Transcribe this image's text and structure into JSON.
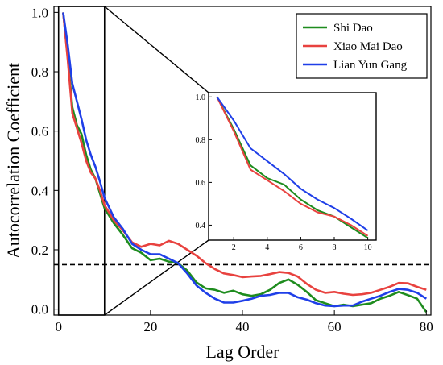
{
  "chart_data": {
    "type": "line",
    "title": "",
    "xlabel": "Lag Order",
    "ylabel": "Autocorrelation Coefficient",
    "xlim": [
      -1,
      81
    ],
    "ylim": [
      -0.02,
      1.02
    ],
    "xticks": [
      0,
      20,
      40,
      60,
      80
    ],
    "xtick_labels": [
      "0",
      "20",
      "40",
      "60",
      "80"
    ],
    "yticks": [
      0.0,
      0.2,
      0.4,
      0.6,
      0.8,
      1.0
    ],
    "ytick_labels": [
      "0.0",
      "0.2",
      "0.4",
      "0.6",
      "0.8",
      "1.0"
    ],
    "grid": false,
    "legend_position": "top-right",
    "threshold_line": {
      "value": 0.15,
      "style": "dashed",
      "color": "#000000"
    },
    "zoom_box": {
      "x": [
        0,
        10
      ],
      "y": [
        -0.02,
        1.02
      ]
    },
    "series": [
      {
        "name": "Shi Dao",
        "color": "#1e8c1e",
        "x": [
          1,
          2,
          3,
          4,
          5,
          6,
          7,
          8,
          9,
          10,
          12,
          14,
          16,
          18,
          20,
          22,
          24,
          26,
          28,
          30,
          32,
          34,
          36,
          38,
          40,
          42,
          44,
          46,
          48,
          50,
          52,
          54,
          56,
          58,
          60,
          62,
          64,
          66,
          68,
          70,
          72,
          74,
          76,
          78,
          80
        ],
        "values": [
          1.0,
          0.85,
          0.68,
          0.62,
          0.59,
          0.52,
          0.47,
          0.44,
          0.39,
          0.34,
          0.29,
          0.25,
          0.205,
          0.19,
          0.165,
          0.17,
          0.16,
          0.155,
          0.13,
          0.09,
          0.07,
          0.065,
          0.055,
          0.062,
          0.05,
          0.045,
          0.05,
          0.065,
          0.088,
          0.1,
          0.082,
          0.058,
          0.03,
          0.02,
          0.01,
          0.015,
          0.01,
          0.015,
          0.02,
          0.035,
          0.045,
          0.058,
          0.047,
          0.035,
          -0.01
        ]
      },
      {
        "name": "Xiao Mai Dao",
        "color": "#e8423f",
        "x": [
          1,
          2,
          3,
          4,
          5,
          6,
          7,
          8,
          9,
          10,
          12,
          14,
          16,
          18,
          20,
          22,
          24,
          26,
          28,
          30,
          32,
          34,
          36,
          38,
          40,
          42,
          44,
          46,
          48,
          50,
          52,
          54,
          56,
          58,
          60,
          62,
          64,
          66,
          68,
          70,
          72,
          74,
          76,
          78,
          80
        ],
        "values": [
          1.0,
          0.84,
          0.66,
          0.61,
          0.56,
          0.5,
          0.46,
          0.44,
          0.4,
          0.35,
          0.3,
          0.265,
          0.225,
          0.21,
          0.22,
          0.215,
          0.23,
          0.22,
          0.2,
          0.18,
          0.155,
          0.135,
          0.12,
          0.115,
          0.108,
          0.11,
          0.112,
          0.118,
          0.125,
          0.122,
          0.11,
          0.085,
          0.065,
          0.055,
          0.058,
          0.052,
          0.048,
          0.05,
          0.055,
          0.065,
          0.075,
          0.088,
          0.087,
          0.075,
          0.065
        ]
      },
      {
        "name": "Lian Yun Gang",
        "color": "#1f3fe8",
        "x": [
          1,
          2,
          3,
          4,
          5,
          6,
          7,
          8,
          9,
          10,
          12,
          14,
          16,
          18,
          20,
          22,
          24,
          26,
          28,
          30,
          32,
          34,
          36,
          38,
          40,
          42,
          44,
          46,
          48,
          50,
          52,
          54,
          56,
          58,
          60,
          62,
          64,
          66,
          68,
          70,
          72,
          74,
          76,
          78,
          80
        ],
        "values": [
          1.0,
          0.89,
          0.76,
          0.7,
          0.64,
          0.57,
          0.52,
          0.48,
          0.43,
          0.375,
          0.31,
          0.27,
          0.22,
          0.2,
          0.185,
          0.185,
          0.17,
          0.155,
          0.12,
          0.08,
          0.055,
          0.035,
          0.022,
          0.022,
          0.028,
          0.035,
          0.045,
          0.048,
          0.055,
          0.055,
          0.04,
          0.032,
          0.02,
          0.012,
          0.01,
          0.012,
          0.012,
          0.025,
          0.035,
          0.045,
          0.058,
          0.068,
          0.065,
          0.055,
          0.035
        ]
      }
    ],
    "inset": {
      "xlim": [
        0.5,
        10.5
      ],
      "ylim": [
        0.33,
        1.02
      ],
      "xticks": [
        2,
        4,
        6,
        8,
        10
      ],
      "xtick_labels": [
        "2",
        "4",
        "6",
        "8",
        "10"
      ],
      "yticks": [
        0.4,
        0.6,
        0.8,
        1.0
      ],
      "ytick_labels": [
        "0.4",
        "0.6",
        "0.8",
        "1.0"
      ]
    }
  }
}
